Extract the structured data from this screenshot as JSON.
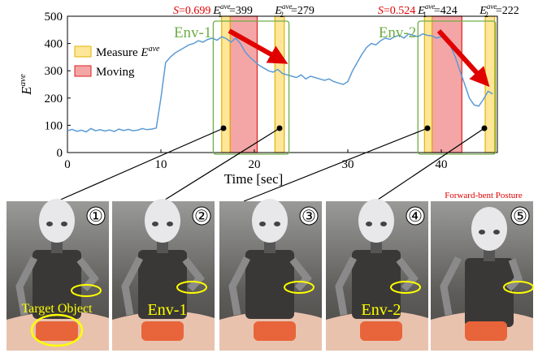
{
  "chart_data": {
    "type": "line",
    "xlabel": "Time [sec]",
    "ylabel": {
      "symbol": "E",
      "sup": "ave"
    },
    "xlim": [
      0,
      46
    ],
    "ylim": [
      0,
      500
    ],
    "xticks": [
      0,
      10,
      20,
      30,
      40
    ],
    "yticks": [
      0,
      100,
      200,
      300,
      400,
      500
    ],
    "x": [
      0,
      0.5,
      1,
      1.5,
      2,
      2.5,
      3,
      3.5,
      4,
      4.5,
      5,
      5.5,
      6,
      6.5,
      7,
      7.5,
      8,
      8.5,
      9,
      9.5,
      10,
      10.5,
      11,
      11.5,
      12,
      12.5,
      13,
      13.5,
      14,
      14.5,
      15,
      15.5,
      16,
      16.5,
      17,
      17.5,
      18,
      18.5,
      19,
      19.5,
      20,
      20.5,
      21,
      21.5,
      22,
      22.5,
      23,
      23.5,
      24,
      24.5,
      25,
      25.5,
      26,
      26.5,
      27,
      27.5,
      28,
      28.5,
      29,
      29.5,
      30,
      30.5,
      31,
      31.5,
      32,
      32.5,
      33,
      33.5,
      34,
      34.5,
      35,
      35.5,
      36,
      36.5,
      37,
      37.5,
      38,
      38.5,
      39,
      39.5,
      40,
      40.5,
      41,
      41.5,
      42,
      42.5,
      43,
      43.5,
      44,
      44.5,
      45,
      45.5
    ],
    "series": [
      {
        "color": "#5b9bd5",
        "values": [
          80,
          85,
          78,
          82,
          76,
          88,
          80,
          84,
          79,
          83,
          77,
          86,
          81,
          85,
          80,
          82,
          88,
          84,
          86,
          90,
          200,
          330,
          350,
          365,
          375,
          385,
          395,
          400,
          410,
          405,
          415,
          420,
          412,
          425,
          418,
          405,
          420,
          400,
          370,
          350,
          335,
          320,
          310,
          300,
          295,
          305,
          290,
          285,
          280,
          275,
          285,
          270,
          280,
          275,
          270,
          265,
          270,
          260,
          255,
          250,
          260,
          300,
          330,
          360,
          385,
          400,
          395,
          410,
          420,
          415,
          425,
          430,
          420,
          435,
          430,
          425,
          435,
          430,
          428,
          420,
          425,
          410,
          390,
          350,
          300,
          250,
          200,
          175,
          170,
          195,
          225,
          215
        ]
      }
    ],
    "measure": {
      "name": "Measure ",
      "symbol": "E",
      "sup": "ave",
      "color": "#ffe699",
      "edge": "#e0b400"
    },
    "moving": {
      "name": "Moving",
      "color": "#f4a6a6",
      "edge": "#e02020"
    },
    "measure_spans": [
      [
        16.5,
        17.4
      ],
      [
        22.2,
        23.2
      ],
      [
        38.2,
        39.0
      ],
      [
        44.7,
        45.7
      ]
    ],
    "moving_spans": [
      [
        17.4,
        20.3
      ],
      [
        39.0,
        42.2
      ]
    ],
    "envs": [
      {
        "label": "Env-1",
        "x": [
          15.6,
          23.7
        ],
        "s": {
          "symbol": "S",
          "eq": "=",
          "value": 0.699
        },
        "e1": {
          "symbol": "E",
          "sub": "1",
          "sup": "ave",
          "eq": "=",
          "value": 399
        },
        "e2": {
          "symbol": "E",
          "sub": "2",
          "sup": "ave",
          "eq": "=",
          "value": 279
        }
      },
      {
        "label": "Env-2",
        "x": [
          37.5,
          45.8
        ],
        "s": {
          "symbol": "S",
          "eq": "=",
          "value": 0.524
        },
        "e1": {
          "symbol": "E",
          "sub": "1",
          "sup": "ave",
          "eq": "=",
          "value": 424
        },
        "e2": {
          "symbol": "E",
          "sub": "2",
          "sup": "ave",
          "eq": "=",
          "value": 222
        }
      }
    ]
  },
  "photos": [
    {
      "number": "①",
      "caption": "Target Object"
    },
    {
      "number": "②",
      "caption": "Env-1"
    },
    {
      "number": "③"
    },
    {
      "number": "④",
      "caption": "Env-2"
    },
    {
      "number": "⑤",
      "header": "Forward-bent Posture"
    }
  ]
}
